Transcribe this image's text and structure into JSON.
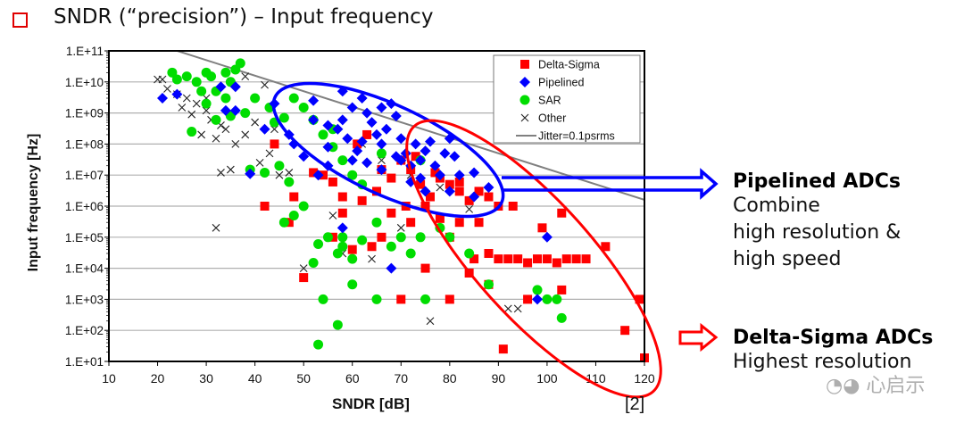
{
  "slide": {
    "title": "SNDR (“precision”) – Input frequency",
    "reference": "[2]",
    "watermark": "心启示",
    "notes": [
      {
        "title": "Pipelined ADCs",
        "lines": [
          "Combine",
          "high resolution &",
          "high speed"
        ],
        "color": "#0000ff"
      },
      {
        "title": "Delta-Sigma ADCs",
        "lines": [
          "Highest resolution"
        ],
        "color": "#ff0000"
      }
    ]
  },
  "chart_data": {
    "type": "scatter",
    "title": "",
    "xlabel": "SNDR [dB]",
    "ylabel": "Input frequency [Hz]",
    "xlim": [
      10,
      120
    ],
    "ylim": [
      10,
      100000000000
    ],
    "yscale": "log",
    "grid": "horizontal",
    "legend_position": "top-right",
    "x_ticks": [
      "10",
      "20",
      "30",
      "40",
      "50",
      "60",
      "70",
      "80",
      "90",
      "100",
      "110",
      "120"
    ],
    "y_ticks": [
      "1.E+11",
      "1.E+10",
      "1.E+09",
      "1.E+08",
      "1.E+07",
      "1.E+06",
      "1.E+05",
      "1.E+04",
      "1.E+03",
      "1.E+02",
      "1.E+01"
    ],
    "legend": [
      "Delta-Sigma",
      "Pipelined",
      "SAR",
      "Other",
      "Jitter=0.1psrms"
    ],
    "series": [
      {
        "name": "Delta-Sigma",
        "marker": "square",
        "color": "#ff0000",
        "points": [
          [
            44,
            100000000.0
          ],
          [
            52,
            12000000.0
          ],
          [
            56,
            6000000.0
          ],
          [
            58,
            2000000.0
          ],
          [
            62,
            1500000.0
          ],
          [
            65,
            3000000.0
          ],
          [
            68,
            8000000.0
          ],
          [
            70,
            30000000.0
          ],
          [
            72,
            15000000.0
          ],
          [
            74,
            5000000.0
          ],
          [
            75,
            1000000.0
          ],
          [
            76,
            2000000.0
          ],
          [
            78,
            8000000.0
          ],
          [
            80,
            5000000.0
          ],
          [
            82,
            3000000.0
          ],
          [
            84,
            1500000.0
          ],
          [
            86,
            3000000.0
          ],
          [
            88,
            2000000.0
          ],
          [
            90,
            1000000.0
          ],
          [
            78,
            400000.0
          ],
          [
            80,
            100000.0
          ],
          [
            82,
            300000.0
          ],
          [
            85,
            20000.0
          ],
          [
            88,
            30000.0
          ],
          [
            90,
            20000.0
          ],
          [
            92,
            20000.0
          ],
          [
            94,
            20000.0
          ],
          [
            96,
            15000.0
          ],
          [
            98,
            20000.0
          ],
          [
            100,
            20000.0
          ],
          [
            102,
            15000.0
          ],
          [
            104,
            20000.0
          ],
          [
            106,
            20000.0
          ],
          [
            108,
            20000.0
          ],
          [
            112,
            50000.0
          ],
          [
            99,
            200000.0
          ],
          [
            103,
            600000.0
          ],
          [
            93,
            1000000.0
          ],
          [
            88,
            3000.0
          ],
          [
            84,
            7000.0
          ],
          [
            80,
            1000.0
          ],
          [
            70,
            1000.0
          ],
          [
            75,
            10000.0
          ],
          [
            64,
            50000.0
          ],
          [
            66,
            100000.0
          ],
          [
            60,
            40000.0
          ],
          [
            56,
            100000.0
          ],
          [
            50,
            5000.0
          ],
          [
            47,
            300000.0
          ],
          [
            42,
            1000000.0
          ],
          [
            91,
            25
          ],
          [
            120,
            13
          ],
          [
            116,
            100
          ],
          [
            119,
            1000
          ],
          [
            103,
            2000.0
          ],
          [
            96,
            1000.0
          ],
          [
            86,
            300000.0
          ],
          [
            72,
            300000.0
          ],
          [
            68,
            600000.0
          ],
          [
            58,
            600000.0
          ],
          [
            54,
            10000000.0
          ],
          [
            48,
            2000000.0
          ],
          [
            82,
            6000000.0
          ],
          [
            61,
            100000000.0
          ],
          [
            63,
            200000000.0
          ],
          [
            71,
            1000000.0
          ],
          [
            77,
            12000000.0
          ],
          [
            73,
            40000000.0
          ],
          [
            66,
            15000000.0
          ]
        ]
      },
      {
        "name": "Pipelined",
        "marker": "diamond",
        "color": "#0000ff",
        "points": [
          [
            21,
            3000000000.0
          ],
          [
            24,
            4000000000.0
          ],
          [
            33,
            7000000000.0
          ],
          [
            36,
            7000000000.0
          ],
          [
            34,
            1200000000.0
          ],
          [
            36,
            1200000000.0
          ],
          [
            42,
            300000000.0
          ],
          [
            39,
            11000000.0
          ],
          [
            48,
            100000000.0
          ],
          [
            50,
            40000000.0
          ],
          [
            53,
            10000000.0
          ],
          [
            55,
            20000000.0
          ],
          [
            55,
            80000000.0
          ],
          [
            57,
            300000000.0
          ],
          [
            58,
            600000000.0
          ],
          [
            60,
            1500000000.0
          ],
          [
            62,
            3000000000.0
          ],
          [
            63,
            1000000000.0
          ],
          [
            64,
            500000000.0
          ],
          [
            65,
            200000000.0
          ],
          [
            66,
            100000000.0
          ],
          [
            67,
            300000000.0
          ],
          [
            68,
            2000000000.0
          ],
          [
            69,
            800000000.0
          ],
          [
            70,
            150000000.0
          ],
          [
            71,
            50000000.0
          ],
          [
            72,
            20000000.0
          ],
          [
            73,
            100000000.0
          ],
          [
            74,
            30000000.0
          ],
          [
            75,
            60000000.0
          ],
          [
            76,
            120000000.0
          ],
          [
            77,
            20000000.0
          ],
          [
            78,
            10000000.0
          ],
          [
            79,
            50000000.0
          ],
          [
            80,
            3000000.0
          ],
          [
            82,
            10000000.0
          ],
          [
            85,
            2000000.0
          ],
          [
            88,
            4000000.0
          ],
          [
            100,
            100000.0
          ],
          [
            98,
            1000.0
          ],
          [
            47,
            200000000.0
          ],
          [
            52,
            2500000000.0
          ],
          [
            55,
            400000000.0
          ],
          [
            59,
            150000000.0
          ],
          [
            61,
            60000000.0
          ],
          [
            63,
            25000000.0
          ],
          [
            66,
            15000000.0
          ],
          [
            69,
            40000000.0
          ],
          [
            72,
            6000000.0
          ],
          [
            75,
            3000000.0
          ],
          [
            80,
            150000000.0
          ],
          [
            52,
            600000000.0
          ],
          [
            44,
            2000000000.0
          ],
          [
            58,
            5000000000.0
          ],
          [
            66,
            1500000000.0
          ],
          [
            70,
            30000000.0
          ],
          [
            74,
            8000000.0
          ],
          [
            81,
            40000000.0
          ],
          [
            85,
            12000000.0
          ],
          [
            60,
            30000000.0
          ],
          [
            62,
            120000000.0
          ],
          [
            68,
            10000.0
          ],
          [
            58,
            200000.0
          ]
        ]
      },
      {
        "name": "SAR",
        "marker": "circle",
        "color": "#00dd00",
        "points": [
          [
            23,
            20000000000.0
          ],
          [
            24,
            12000000000.0
          ],
          [
            26,
            15000000000.0
          ],
          [
            28,
            10000000000.0
          ],
          [
            30,
            20000000000.0
          ],
          [
            31,
            15000000000.0
          ],
          [
            34,
            20000000000.0
          ],
          [
            36,
            25000000000.0
          ],
          [
            37,
            40000000000.0
          ],
          [
            35,
            10000000000.0
          ],
          [
            32,
            5000000000.0
          ],
          [
            34,
            3000000000.0
          ],
          [
            29,
            5000000000.0
          ],
          [
            27,
            250000000.0
          ],
          [
            30,
            2000000000.0
          ],
          [
            32,
            600000000.0
          ],
          [
            35,
            800000000.0
          ],
          [
            38,
            1000000000.0
          ],
          [
            40,
            3000000000.0
          ],
          [
            43,
            1500000000.0
          ],
          [
            44,
            500000000.0
          ],
          [
            46,
            700000000.0
          ],
          [
            48,
            3000000000.0
          ],
          [
            50,
            1500000000.0
          ],
          [
            52,
            600000000.0
          ],
          [
            54,
            200000000.0
          ],
          [
            56,
            80000000.0
          ],
          [
            58,
            30000000.0
          ],
          [
            60,
            10000000.0
          ],
          [
            62,
            5000000.0
          ],
          [
            45,
            20000000.0
          ],
          [
            47,
            6000000.0
          ],
          [
            50,
            1000000.0
          ],
          [
            46,
            300000.0
          ],
          [
            48,
            500000.0
          ],
          [
            52,
            15000.0
          ],
          [
            53,
            60000.0
          ],
          [
            55,
            100000.0
          ],
          [
            57,
            30000.0
          ],
          [
            58,
            100000.0
          ],
          [
            60,
            20000.0
          ],
          [
            62,
            80000.0
          ],
          [
            65,
            300000.0
          ],
          [
            54,
            1000.0
          ],
          [
            53,
            35
          ],
          [
            57,
            150
          ],
          [
            60,
            3000.0
          ],
          [
            65,
            1000.0
          ],
          [
            68,
            50000.0
          ],
          [
            70,
            100000.0
          ],
          [
            72,
            30000.0
          ],
          [
            74,
            100000.0
          ],
          [
            75,
            1000.0
          ],
          [
            78,
            200000.0
          ],
          [
            80,
            100000.0
          ],
          [
            84,
            30000.0
          ],
          [
            88,
            3000.0
          ],
          [
            98,
            2000.0
          ],
          [
            100,
            1000.0
          ],
          [
            102,
            1000.0
          ],
          [
            103,
            250
          ],
          [
            56,
            300000000.0
          ],
          [
            66,
            50000000.0
          ],
          [
            74,
            30000000.0
          ],
          [
            58,
            50000.0
          ],
          [
            42,
            12000000.0
          ],
          [
            39,
            15000000.0
          ]
        ]
      },
      {
        "name": "Other",
        "marker": "x",
        "color": "#222222",
        "points": [
          [
            20,
            12000000000.0
          ],
          [
            21,
            12000000000.0
          ],
          [
            22,
            6000000000.0
          ],
          [
            24,
            4000000000.0
          ],
          [
            26,
            3000000000.0
          ],
          [
            28,
            2000000000.0
          ],
          [
            25,
            1500000000.0
          ],
          [
            27,
            900000000.0
          ],
          [
            30,
            1200000000.0
          ],
          [
            31,
            600000000.0
          ],
          [
            33,
            400000000.0
          ],
          [
            29,
            200000000.0
          ],
          [
            32,
            150000000.0
          ],
          [
            34,
            300000000.0
          ],
          [
            36,
            100000000.0
          ],
          [
            38,
            200000000.0
          ],
          [
            40,
            500000000.0
          ],
          [
            42,
            8000000000.0
          ],
          [
            44,
            300000000.0
          ],
          [
            35,
            15000000.0
          ],
          [
            33,
            12000000.0
          ],
          [
            41,
            25000000.0
          ],
          [
            43,
            50000000.0
          ],
          [
            45,
            10000000.0
          ],
          [
            47,
            12000000.0
          ],
          [
            32,
            200000.0
          ],
          [
            50,
            10000.0
          ],
          [
            56,
            500000.0
          ],
          [
            58,
            30000.0
          ],
          [
            76,
            200
          ],
          [
            92,
            500
          ],
          [
            94,
            500
          ],
          [
            84,
            800000.0
          ],
          [
            78,
            4000000.0
          ],
          [
            72,
            10000000.0
          ],
          [
            66,
            30000000.0
          ],
          [
            62,
            100000000.0
          ],
          [
            70,
            200000.0
          ],
          [
            64,
            20000.0
          ],
          [
            38,
            15000000000.0
          ],
          [
            30,
            3000000000.0
          ]
        ]
      }
    ],
    "lines": [
      {
        "name": "Jitter=0.1psrms",
        "color": "#808080",
        "jitter_s": 1e-13
      }
    ],
    "annotations": [
      {
        "shape": "ellipse",
        "color": "#0000ff",
        "label": "Pipelined ADCs"
      },
      {
        "shape": "ellipse",
        "color": "#ff0000",
        "label": "Delta-Sigma ADCs"
      }
    ]
  }
}
